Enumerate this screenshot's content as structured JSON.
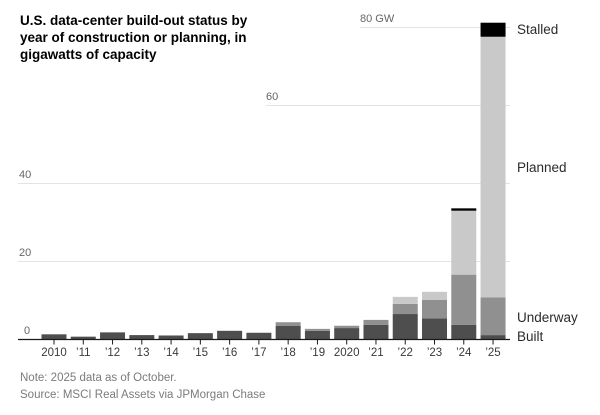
{
  "header": {
    "title_lines": [
      "U.S. data-center build-out status by",
      "year of construction or planning, in",
      "gigawatts of capacity"
    ],
    "title_full": "U.S. data-center build-out status by year of construction or planning, in gigawatts of capacity"
  },
  "footer": {
    "note": "Note: 2025 data as of October.",
    "source": "Source: MSCI Real Assets via JPMorgan Chase"
  },
  "chart_data": {
    "type": "bar",
    "stacked": true,
    "unit": "gigawatts",
    "categories": [
      "2010",
      "’11",
      "’12",
      "’13",
      "’14",
      "’15",
      "’16",
      "’17",
      "’18",
      "’19",
      "2020",
      "’21",
      "’22",
      "’23",
      "’24",
      "’25"
    ],
    "series": [
      {
        "name": "Built",
        "color": "#4e4e4e",
        "values": [
          1.2,
          0.6,
          1.7,
          1.0,
          0.9,
          1.5,
          2.1,
          1.6,
          3.4,
          2.1,
          2.8,
          3.6,
          6.4,
          5.3,
          3.6,
          1.0
        ]
      },
      {
        "name": "Underway",
        "color": "#909090",
        "values": [
          0,
          0,
          0,
          0,
          0,
          0,
          0,
          0,
          0.9,
          0.5,
          0.6,
          1.3,
          2.6,
          4.7,
          12.9,
          9.7
        ]
      },
      {
        "name": "Planned",
        "color": "#c9c9c9",
        "values": [
          0,
          0,
          0,
          0,
          0,
          0,
          0,
          0,
          0,
          0,
          0,
          0,
          1.8,
          2.1,
          16.4,
          66.8
        ]
      },
      {
        "name": "Stalled",
        "color": "#000000",
        "values": [
          0,
          0,
          0,
          0,
          0,
          0,
          0,
          0,
          0,
          0,
          0,
          0,
          0,
          0,
          0.6,
          3.6
        ]
      }
    ],
    "yticks": [
      {
        "value": 0,
        "label": "0"
      },
      {
        "value": 20,
        "label": "20"
      },
      {
        "value": 40,
        "label": "40"
      },
      {
        "value": 60,
        "label": "60"
      },
      {
        "value": 80,
        "label": "80 GW"
      }
    ],
    "ylim": [
      0,
      82
    ],
    "grid": true,
    "legend_position": "right",
    "legend": [
      "Stalled",
      "Planned",
      "Underway",
      "Built"
    ],
    "colors": {
      "axis_line": "#1a1a1a",
      "gridline": "#e3e3e3",
      "tick_label": "#3a3a3a",
      "y_label": "#666666",
      "legend_label": "#2b2b2b"
    }
  }
}
